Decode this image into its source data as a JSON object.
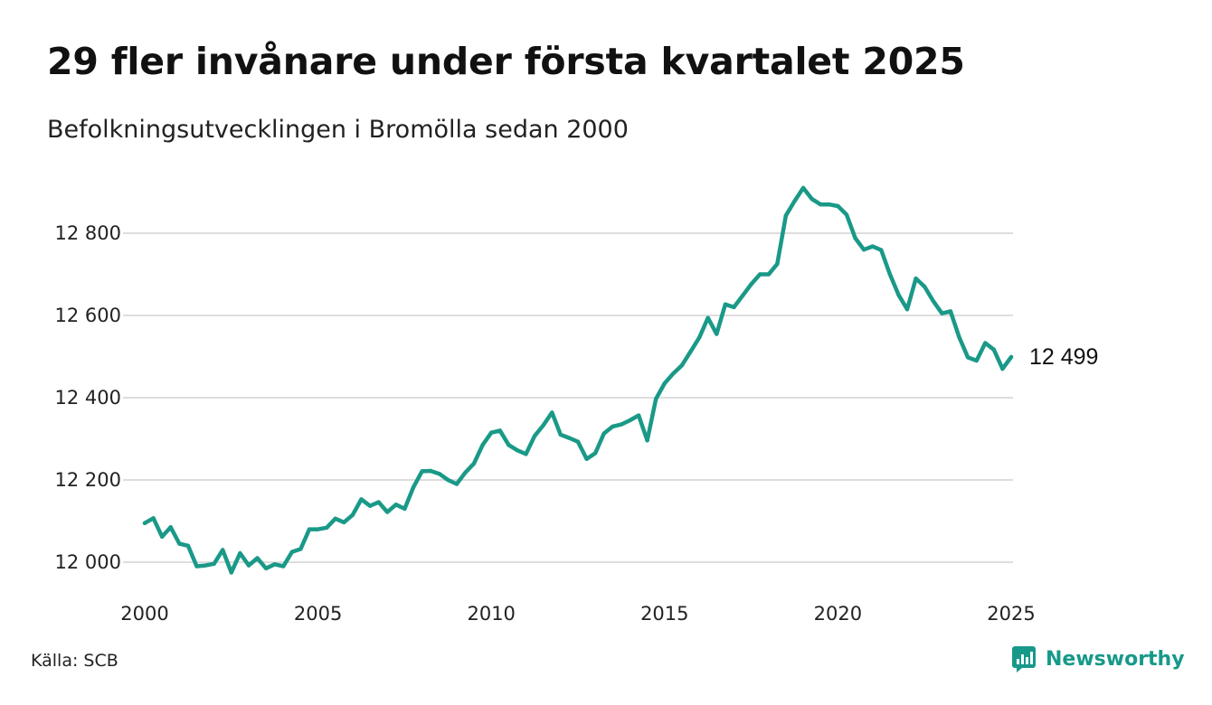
{
  "title": "29 fler invånare under första kvartalet 2025",
  "subtitle": "Befolkningsutvecklingen i Bromölla sedan 2000",
  "source": "Källa: SCB",
  "brand": {
    "name": "Newsworthy",
    "icon": "newsworthy-logo-icon",
    "color": "#17998a"
  },
  "chart_data": {
    "type": "line",
    "title": "29 fler invånare under första kvartalet 2025",
    "subtitle": "Befolkningsutvecklingen i Bromölla sedan 2000",
    "xlabel": "",
    "ylabel": "",
    "xlim": [
      2000,
      2025
    ],
    "ylim": [
      11960,
      12940
    ],
    "grid": true,
    "legend": "none",
    "line_color": "#1a9988",
    "y_ticks": [
      12000,
      12200,
      12400,
      12600,
      12800
    ],
    "y_tick_labels": [
      "12 000",
      "12 200",
      "12 400",
      "12 600",
      "12 800"
    ],
    "x_ticks": [
      2000,
      2005,
      2010,
      2015,
      2020,
      2025
    ],
    "x_tick_labels": [
      "2000",
      "2005",
      "2010",
      "2015",
      "2020",
      "2025"
    ],
    "end_label": "12 499",
    "series": [
      {
        "values": [
          [
            2000.0,
            12095
          ],
          [
            2000.25,
            12107
          ],
          [
            2000.5,
            12062
          ],
          [
            2000.75,
            12085
          ],
          [
            2001.0,
            12045
          ],
          [
            2001.25,
            12040
          ],
          [
            2001.5,
            11990
          ],
          [
            2001.75,
            11992
          ],
          [
            2002.0,
            11996
          ],
          [
            2002.25,
            12030
          ],
          [
            2002.5,
            11975
          ],
          [
            2002.75,
            12022
          ],
          [
            2003.0,
            11992
          ],
          [
            2003.25,
            12010
          ],
          [
            2003.5,
            11985
          ],
          [
            2003.75,
            11995
          ],
          [
            2004.0,
            11990
          ],
          [
            2004.25,
            12025
          ],
          [
            2004.5,
            12032
          ],
          [
            2004.75,
            12080
          ],
          [
            2005.0,
            12080
          ],
          [
            2005.25,
            12084
          ],
          [
            2005.5,
            12106
          ],
          [
            2005.75,
            12097
          ],
          [
            2006.0,
            12115
          ],
          [
            2006.25,
            12153
          ],
          [
            2006.5,
            12137
          ],
          [
            2006.75,
            12146
          ],
          [
            2007.0,
            12122
          ],
          [
            2007.25,
            12140
          ],
          [
            2007.5,
            12130
          ],
          [
            2007.75,
            12182
          ],
          [
            2008.0,
            12221
          ],
          [
            2008.25,
            12222
          ],
          [
            2008.5,
            12215
          ],
          [
            2008.75,
            12200
          ],
          [
            2009.0,
            12190
          ],
          [
            2009.25,
            12218
          ],
          [
            2009.5,
            12240
          ],
          [
            2009.75,
            12285
          ],
          [
            2010.0,
            12315
          ],
          [
            2010.25,
            12320
          ],
          [
            2010.5,
            12285
          ],
          [
            2010.75,
            12272
          ],
          [
            2011.0,
            12263
          ],
          [
            2011.25,
            12307
          ],
          [
            2011.5,
            12333
          ],
          [
            2011.75,
            12364
          ],
          [
            2012.0,
            12310
          ],
          [
            2012.25,
            12302
          ],
          [
            2012.5,
            12293
          ],
          [
            2012.75,
            12251
          ],
          [
            2013.0,
            12265
          ],
          [
            2013.25,
            12313
          ],
          [
            2013.5,
            12330
          ],
          [
            2013.75,
            12335
          ],
          [
            2014.0,
            12345
          ],
          [
            2014.25,
            12357
          ],
          [
            2014.5,
            12296
          ],
          [
            2014.75,
            12397
          ],
          [
            2015.0,
            12435
          ],
          [
            2015.25,
            12459
          ],
          [
            2015.5,
            12479
          ],
          [
            2015.75,
            12512
          ],
          [
            2016.0,
            12546
          ],
          [
            2016.25,
            12594
          ],
          [
            2016.5,
            12555
          ],
          [
            2016.75,
            12627
          ],
          [
            2017.0,
            12620
          ],
          [
            2017.25,
            12648
          ],
          [
            2017.5,
            12676
          ],
          [
            2017.75,
            12700
          ],
          [
            2018.0,
            12700
          ],
          [
            2018.25,
            12725
          ],
          [
            2018.5,
            12843
          ],
          [
            2018.75,
            12878
          ],
          [
            2019.0,
            12910
          ],
          [
            2019.25,
            12883
          ],
          [
            2019.5,
            12870
          ],
          [
            2019.75,
            12870
          ],
          [
            2020.0,
            12866
          ],
          [
            2020.25,
            12845
          ],
          [
            2020.5,
            12788
          ],
          [
            2020.75,
            12760
          ],
          [
            2021.0,
            12768
          ],
          [
            2021.25,
            12759
          ],
          [
            2021.5,
            12700
          ],
          [
            2021.75,
            12650
          ],
          [
            2022.0,
            12615
          ],
          [
            2022.25,
            12690
          ],
          [
            2022.5,
            12670
          ],
          [
            2022.75,
            12635
          ],
          [
            2023.0,
            12605
          ],
          [
            2023.25,
            12610
          ],
          [
            2023.5,
            12547
          ],
          [
            2023.75,
            12498
          ],
          [
            2024.0,
            12490
          ],
          [
            2024.25,
            12533
          ],
          [
            2024.5,
            12517
          ],
          [
            2024.75,
            12470
          ],
          [
            2025.0,
            12499
          ]
        ]
      }
    ]
  }
}
